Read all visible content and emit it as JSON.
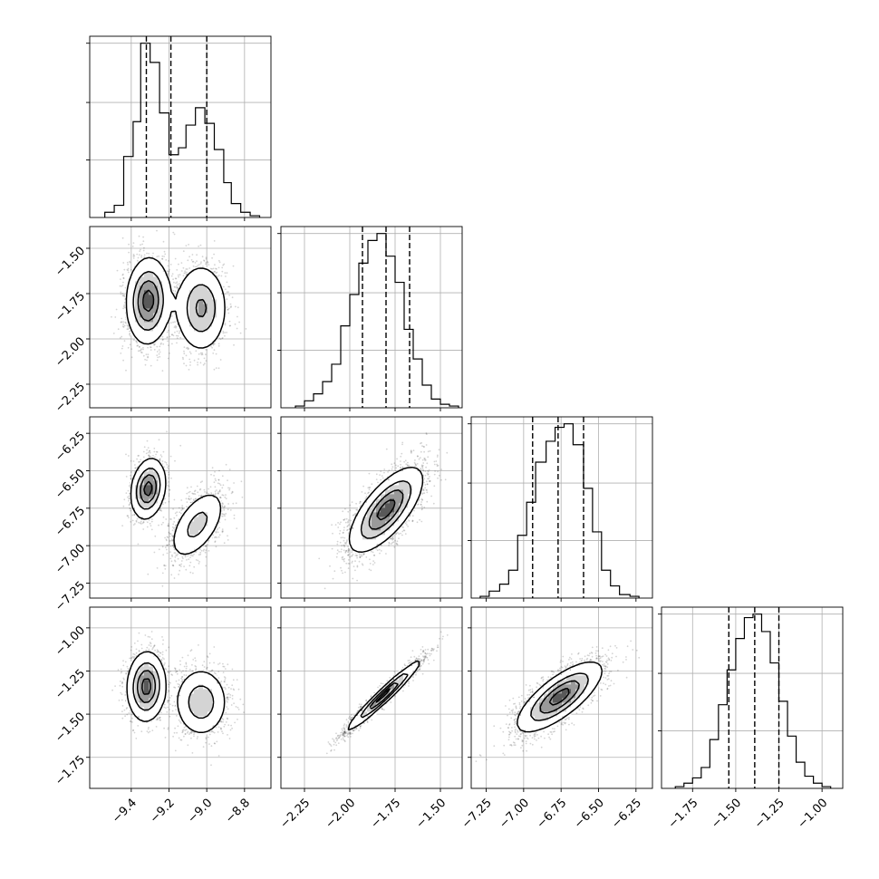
{
  "chart_data": {
    "type": "corner",
    "grid": true,
    "parameters": [
      {
        "ticks": [
          -9.4,
          -9.2,
          -9.0,
          -8.8
        ],
        "tick_labels": [
          "−9.4",
          "−9.2",
          "−9.0",
          "−8.8"
        ],
        "range": [
          -9.62,
          -8.66
        ],
        "quantiles": [
          -9.32,
          -9.19,
          -9.0
        ],
        "hist_bins": [
          [
            -9.54,
            -9.49
          ],
          [
            -9.49,
            -9.44
          ],
          [
            -9.44,
            -9.39
          ],
          [
            -9.39,
            -9.35
          ],
          [
            -9.35,
            -9.3
          ],
          [
            -9.3,
            -9.25
          ],
          [
            -9.25,
            -9.2
          ],
          [
            -9.2,
            -9.15
          ],
          [
            -9.15,
            -9.11
          ],
          [
            -9.11,
            -9.06
          ],
          [
            -9.06,
            -9.01
          ],
          [
            -9.01,
            -8.96
          ],
          [
            -8.96,
            -8.91
          ],
          [
            -8.91,
            -8.87
          ],
          [
            -8.87,
            -8.82
          ],
          [
            -8.82,
            -8.77
          ],
          [
            -8.77,
            -8.72
          ]
        ],
        "hist_counts": [
          0.03,
          0.07,
          0.35,
          0.55,
          1.0,
          0.89,
          0.6,
          0.36,
          0.4,
          0.53,
          0.63,
          0.54,
          0.39,
          0.2,
          0.08,
          0.03,
          0.01
        ]
      },
      {
        "ticks": [
          -2.25,
          -2.0,
          -1.75,
          -1.5
        ],
        "tick_labels": [
          "−2.25",
          "−2.00",
          "−1.75",
          "−1.50"
        ],
        "range": [
          -2.38,
          -1.38
        ],
        "quantiles": [
          -1.93,
          -1.8,
          -1.67
        ],
        "hist_bins": [
          [
            -2.3,
            -2.25
          ],
          [
            -2.25,
            -2.2
          ],
          [
            -2.2,
            -2.15
          ],
          [
            -2.15,
            -2.1
          ],
          [
            -2.1,
            -2.05
          ],
          [
            -2.05,
            -2.0
          ],
          [
            -2.0,
            -1.95
          ],
          [
            -1.95,
            -1.9
          ],
          [
            -1.9,
            -1.85
          ],
          [
            -1.85,
            -1.8
          ],
          [
            -1.8,
            -1.75
          ],
          [
            -1.75,
            -1.7
          ],
          [
            -1.7,
            -1.65
          ],
          [
            -1.65,
            -1.6
          ],
          [
            -1.6,
            -1.55
          ],
          [
            -1.55,
            -1.5
          ],
          [
            -1.5,
            -1.45
          ],
          [
            -1.45,
            -1.4
          ]
        ],
        "hist_counts": [
          0.01,
          0.04,
          0.08,
          0.15,
          0.25,
          0.47,
          0.65,
          0.83,
          0.96,
          1.0,
          0.87,
          0.72,
          0.45,
          0.28,
          0.13,
          0.05,
          0.02,
          0.01
        ]
      },
      {
        "ticks": [
          -7.25,
          -7.0,
          -6.75,
          -6.5,
          -6.25
        ],
        "tick_labels": [
          "−7.25",
          "−7.00",
          "−6.75",
          "−6.50",
          "−6.25"
        ],
        "range": [
          -7.35,
          -6.14
        ],
        "quantiles": [
          -6.94,
          -6.77,
          -6.6
        ],
        "hist_bins": [
          [
            -7.29,
            -7.23
          ],
          [
            -7.23,
            -7.16
          ],
          [
            -7.16,
            -7.1
          ],
          [
            -7.1,
            -7.04
          ],
          [
            -7.04,
            -6.98
          ],
          [
            -6.98,
            -6.92
          ],
          [
            -6.92,
            -6.85
          ],
          [
            -6.85,
            -6.79
          ],
          [
            -6.79,
            -6.73
          ],
          [
            -6.73,
            -6.67
          ],
          [
            -6.67,
            -6.6
          ],
          [
            -6.6,
            -6.54
          ],
          [
            -6.54,
            -6.48
          ],
          [
            -6.48,
            -6.42
          ],
          [
            -6.42,
            -6.36
          ],
          [
            -6.36,
            -6.29
          ],
          [
            -6.29,
            -6.23
          ]
        ],
        "hist_counts": [
          0.01,
          0.04,
          0.08,
          0.16,
          0.36,
          0.55,
          0.78,
          0.9,
          0.98,
          1.0,
          0.88,
          0.63,
          0.38,
          0.16,
          0.07,
          0.02,
          0.01
        ]
      },
      {
        "ticks": [
          -1.75,
          -1.5,
          -1.25,
          -1.0
        ],
        "tick_labels": [
          "−1.75",
          "−1.50",
          "−1.25",
          "−1.00"
        ],
        "range": [
          -1.93,
          -0.88
        ],
        "quantiles": [
          -1.54,
          -1.39,
          -1.25
        ],
        "hist_bins": [
          [
            -1.85,
            -1.8
          ],
          [
            -1.8,
            -1.75
          ],
          [
            -1.75,
            -1.7
          ],
          [
            -1.7,
            -1.65
          ],
          [
            -1.65,
            -1.6
          ],
          [
            -1.6,
            -1.55
          ],
          [
            -1.55,
            -1.5
          ],
          [
            -1.5,
            -1.45
          ],
          [
            -1.45,
            -1.4
          ],
          [
            -1.4,
            -1.35
          ],
          [
            -1.35,
            -1.3
          ],
          [
            -1.3,
            -1.25
          ],
          [
            -1.25,
            -1.2
          ],
          [
            -1.2,
            -1.15
          ],
          [
            -1.15,
            -1.1
          ],
          [
            -1.1,
            -1.05
          ],
          [
            -1.05,
            -1.0
          ],
          [
            -1.0,
            -0.95
          ]
        ],
        "hist_counts": [
          0.01,
          0.03,
          0.06,
          0.12,
          0.28,
          0.48,
          0.68,
          0.86,
          0.98,
          1.0,
          0.9,
          0.72,
          0.5,
          0.3,
          0.15,
          0.07,
          0.03,
          0.01
        ]
      }
    ],
    "diag_hist_yticks": [
      0.33,
      0.66,
      1.0
    ],
    "pairs": [
      {
        "row": 1,
        "col": 0,
        "components": [
          {
            "mx": -9.31,
            "my": -1.79,
            "sx": 0.057,
            "sy": 0.118,
            "rho": 0.05,
            "w": 1.0
          },
          {
            "mx": -9.03,
            "my": -1.83,
            "sx": 0.068,
            "sy": 0.12,
            "rho": 0.0,
            "w": 0.85
          }
        ]
      },
      {
        "row": 2,
        "col": 0,
        "components": [
          {
            "mx": -9.31,
            "my": -6.62,
            "sx": 0.045,
            "sy": 0.1,
            "rho": 0.2,
            "w": 1.0
          },
          {
            "mx": -9.05,
            "my": -6.86,
            "sx": 0.075,
            "sy": 0.12,
            "rho": 0.55,
            "w": 0.85
          }
        ]
      },
      {
        "row": 2,
        "col": 1,
        "components": [
          {
            "mx": -1.8,
            "my": -6.76,
            "sx": 0.1,
            "sy": 0.14,
            "rho": 0.7,
            "w": 1.0
          }
        ]
      },
      {
        "row": 3,
        "col": 0,
        "components": [
          {
            "mx": -9.32,
            "my": -1.34,
            "sx": 0.05,
            "sy": 0.1,
            "rho": 0.05,
            "w": 1.0
          },
          {
            "mx": -9.03,
            "my": -1.43,
            "sx": 0.07,
            "sy": 0.1,
            "rho": 0.0,
            "w": 0.85
          }
        ]
      },
      {
        "row": 3,
        "col": 1,
        "components": [
          {
            "mx": -1.81,
            "my": -1.39,
            "sx": 0.1,
            "sy": 0.1,
            "rho": 0.97,
            "w": 1.0
          }
        ]
      },
      {
        "row": 3,
        "col": 2,
        "components": [
          {
            "mx": -6.76,
            "my": -1.4,
            "sx": 0.14,
            "sy": 0.1,
            "rho": 0.75,
            "w": 1.0
          }
        ]
      }
    ]
  }
}
